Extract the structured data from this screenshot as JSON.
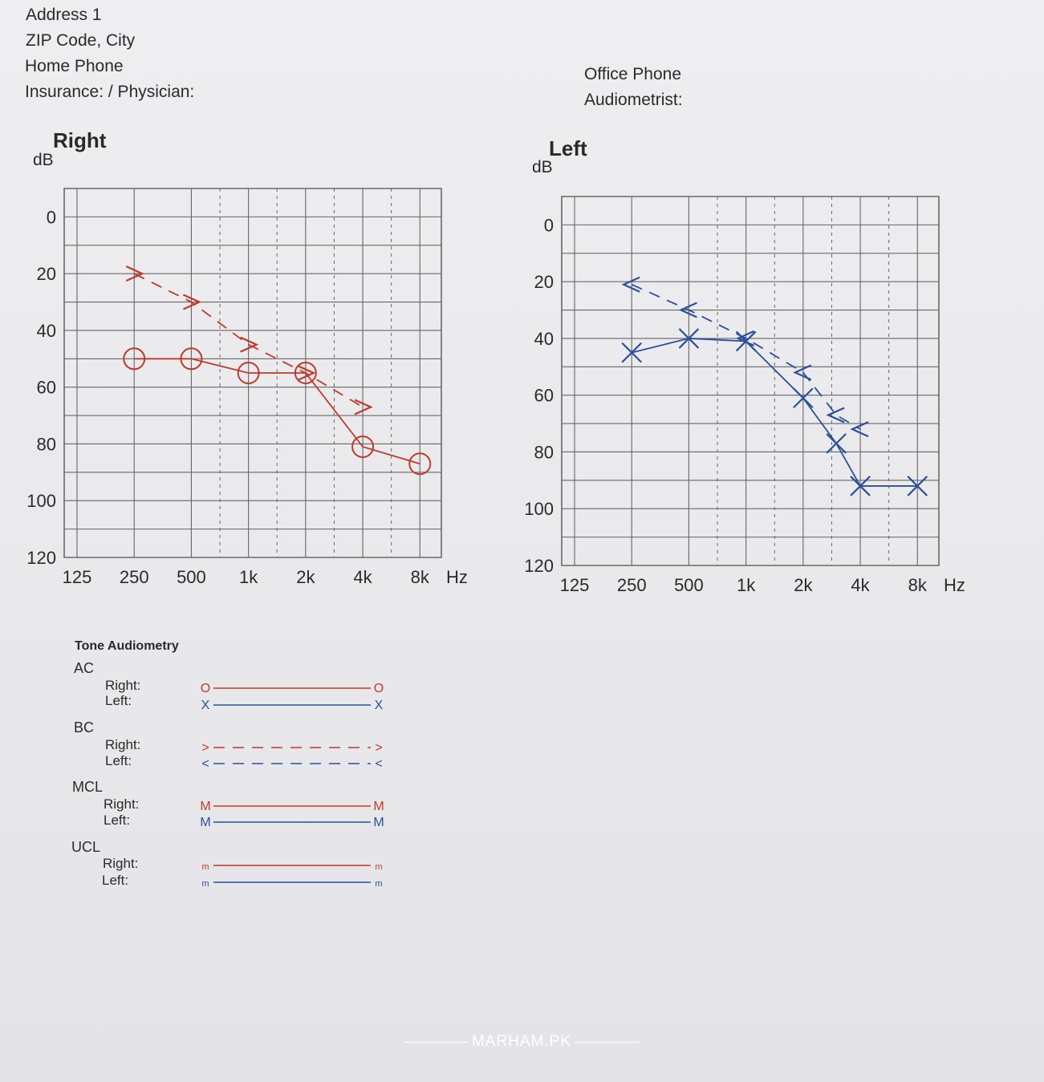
{
  "header": {
    "address": "Address 1",
    "zip_city": "ZIP Code, City",
    "home_phone": "Home Phone",
    "insurance": "Insurance: / Physician:",
    "office_phone": "Office Phone",
    "audiometrist": "Audiometrist:"
  },
  "chart_data": [
    {
      "type": "line",
      "title": "Right",
      "ylabel": "dB",
      "xlabel": "Hz",
      "x_tick_labels": [
        "125",
        "250",
        "500",
        "1k",
        "2k",
        "4k",
        "8k"
      ],
      "y_tick_labels": [
        "0",
        "20",
        "40",
        "60",
        "80",
        "100",
        "120"
      ],
      "ylim": [
        120,
        -10
      ],
      "y_inverted": true,
      "grid": true,
      "series": [
        {
          "type": "air-conduction",
          "marker": "circle",
          "color": "#c0392b",
          "line": "solid",
          "x": [
            "250",
            "500",
            "1k",
            "2k",
            "4k",
            "8k"
          ],
          "values": [
            50,
            50,
            55,
            55,
            81,
            87
          ]
        },
        {
          "type": "bone-conduction",
          "marker": "chevron-right",
          "color": "#c0392b",
          "line": "dashed",
          "x": [
            "250",
            "500",
            "1k",
            "2k",
            "4k"
          ],
          "values": [
            20,
            30,
            45,
            55,
            67
          ]
        }
      ]
    },
    {
      "type": "line",
      "title": "Left",
      "ylabel": "dB",
      "xlabel": "Hz",
      "x_tick_labels": [
        "125",
        "250",
        "500",
        "1k",
        "2k",
        "4k",
        "8k"
      ],
      "y_tick_labels": [
        "0",
        "20",
        "40",
        "60",
        "80",
        "100",
        "120"
      ],
      "ylim": [
        120,
        -10
      ],
      "y_inverted": true,
      "grid": true,
      "series": [
        {
          "type": "air-conduction",
          "marker": "x",
          "color": "#2c4f9a",
          "line": "solid",
          "x": [
            "250",
            "500",
            "1k",
            "2k",
            "3k",
            "4k",
            "8k"
          ],
          "values": [
            45,
            40,
            41,
            61,
            77,
            92,
            92
          ]
        },
        {
          "type": "bone-conduction",
          "marker": "chevron-left",
          "color": "#2c4f9a",
          "line": "dashed",
          "x": [
            "250",
            "500",
            "1k",
            "2k",
            "3k",
            "4k"
          ],
          "values": [
            21,
            30,
            40,
            52,
            67,
            72
          ]
        }
      ]
    }
  ],
  "legend": {
    "title": "Tone Audiometry",
    "groups": [
      {
        "name": "AC",
        "right": "Right:",
        "left": "Left:",
        "right_symbol": "O",
        "left_symbol": "X",
        "right_end": "O",
        "left_end": "X",
        "style": "solid"
      },
      {
        "name": "BC",
        "right": "Right:",
        "left": "Left:",
        "right_symbol": ">",
        "left_symbol": "<",
        "right_end": ">",
        "left_end": "<",
        "style": "dashed"
      },
      {
        "name": "MCL",
        "right": "Right:",
        "left": "Left:",
        "right_symbol": "M",
        "left_symbol": "M",
        "right_end": "M",
        "left_end": "M",
        "style": "solid"
      },
      {
        "name": "UCL",
        "right": "Right:",
        "left": "Left:",
        "right_symbol": "m",
        "left_symbol": "m",
        "right_end": "m",
        "left_end": "m",
        "style": "solid"
      }
    ],
    "colors": {
      "right": "#c0392b",
      "left": "#2c4f9a"
    }
  },
  "watermark": "MARHAM.PK"
}
